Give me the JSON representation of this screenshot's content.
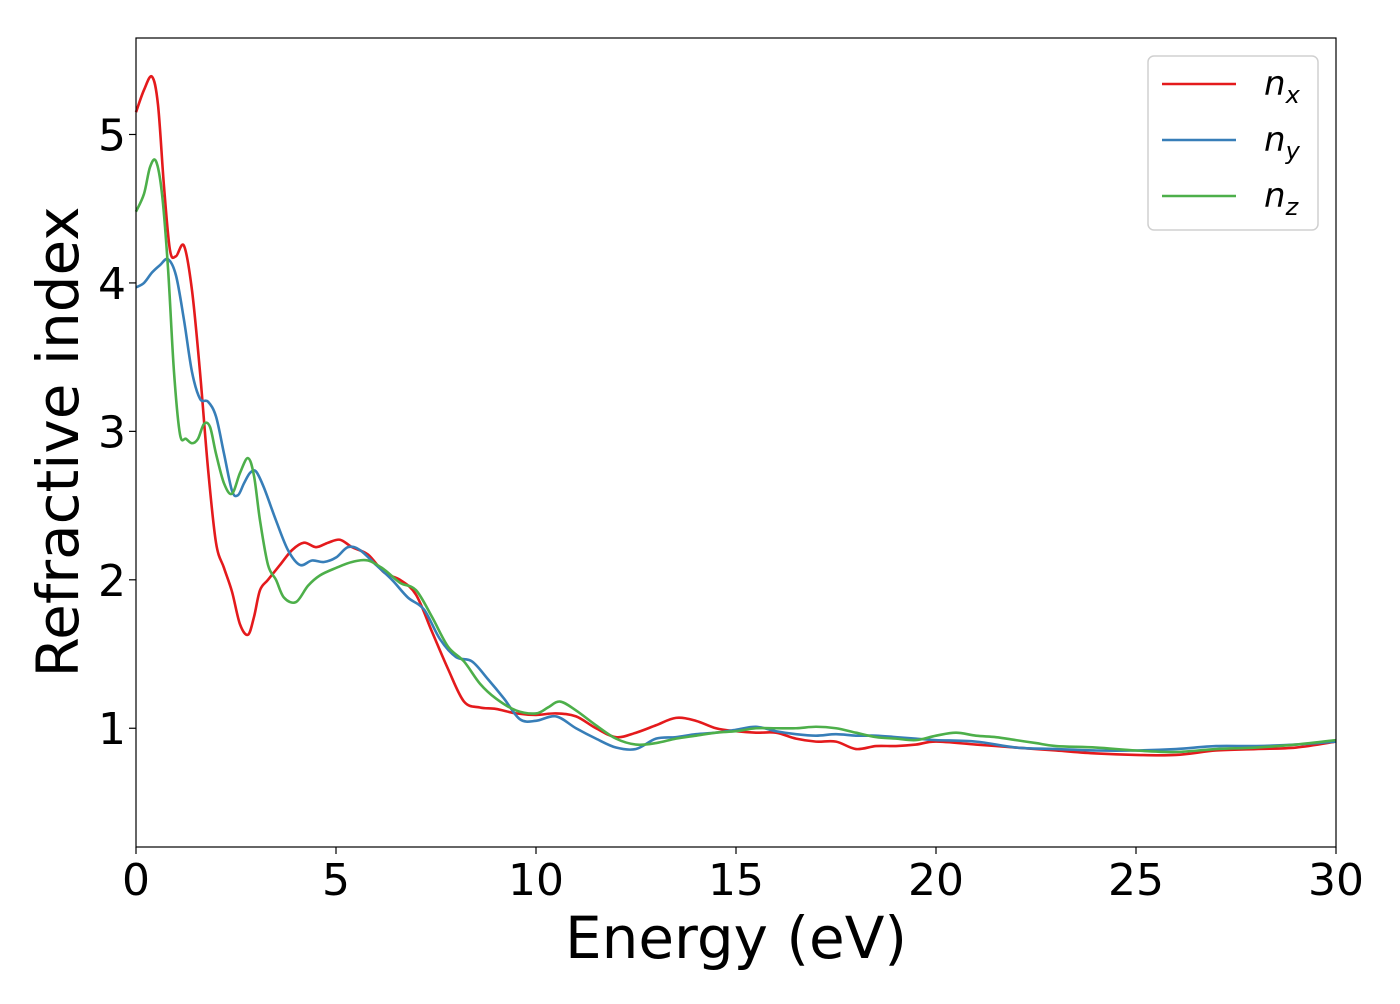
{
  "chart_data": {
    "type": "line",
    "title": "",
    "xlabel": "Energy (eV)",
    "ylabel": "Refractive index",
    "xlim": [
      0,
      30
    ],
    "ylim": [
      0.2,
      5.65
    ],
    "xticks": [
      0,
      5,
      10,
      15,
      20,
      25,
      30
    ],
    "yticks": [
      1,
      2,
      3,
      4,
      5
    ],
    "grid": false,
    "legend": "top-right",
    "series": [
      {
        "name": "n",
        "subscript": "x",
        "color": "#e41a1c",
        "x": [
          0,
          0.2,
          0.4,
          0.55,
          0.7,
          0.85,
          1.0,
          1.2,
          1.4,
          1.6,
          1.8,
          2.0,
          2.2,
          2.4,
          2.6,
          2.8,
          2.95,
          3.1,
          3.3,
          3.6,
          3.9,
          4.2,
          4.5,
          4.8,
          5.1,
          5.4,
          5.8,
          6.2,
          6.6,
          7.0,
          7.4,
          7.8,
          8.2,
          8.6,
          9.0,
          9.5,
          10.0,
          10.5,
          11.0,
          11.5,
          12.0,
          12.5,
          13.0,
          13.5,
          14.0,
          14.5,
          15.0,
          15.5,
          16.0,
          16.5,
          17.0,
          17.5,
          18.0,
          18.5,
          19.0,
          19.5,
          20.0,
          21.0,
          22.0,
          23.0,
          24.0,
          25.0,
          26.0,
          27.0,
          28.0,
          29.0,
          30.0
        ],
        "y": [
          5.15,
          5.3,
          5.39,
          5.2,
          4.65,
          4.22,
          4.18,
          4.25,
          3.95,
          3.4,
          2.75,
          2.25,
          2.08,
          1.92,
          1.7,
          1.63,
          1.75,
          1.93,
          2.0,
          2.1,
          2.2,
          2.25,
          2.22,
          2.25,
          2.27,
          2.22,
          2.17,
          2.05,
          2.0,
          1.9,
          1.65,
          1.4,
          1.18,
          1.14,
          1.13,
          1.1,
          1.09,
          1.1,
          1.08,
          1.0,
          0.94,
          0.97,
          1.02,
          1.07,
          1.05,
          1.0,
          0.98,
          0.97,
          0.97,
          0.93,
          0.91,
          0.91,
          0.86,
          0.88,
          0.88,
          0.89,
          0.91,
          0.89,
          0.87,
          0.85,
          0.83,
          0.82,
          0.82,
          0.85,
          0.86,
          0.87,
          0.91
        ]
      },
      {
        "name": "n",
        "subscript": "y",
        "color": "#377eb8",
        "x": [
          0,
          0.2,
          0.4,
          0.6,
          0.8,
          1.0,
          1.2,
          1.4,
          1.6,
          1.8,
          2.0,
          2.2,
          2.4,
          2.55,
          2.7,
          2.85,
          3.0,
          3.2,
          3.5,
          3.8,
          4.1,
          4.4,
          4.7,
          5.0,
          5.3,
          5.6,
          6.0,
          6.4,
          6.8,
          7.2,
          7.6,
          8.0,
          8.4,
          8.8,
          9.2,
          9.6,
          10.0,
          10.5,
          11.0,
          11.5,
          12.0,
          12.5,
          13.0,
          13.5,
          14.0,
          14.5,
          15.0,
          15.5,
          16.0,
          16.5,
          17.0,
          17.5,
          18.0,
          18.5,
          19.0,
          19.5,
          20.0,
          21.0,
          22.0,
          23.0,
          24.0,
          25.0,
          26.0,
          27.0,
          28.0,
          29.0,
          30.0
        ],
        "y": [
          3.97,
          4.0,
          4.07,
          4.12,
          4.16,
          4.05,
          3.75,
          3.4,
          3.22,
          3.2,
          3.1,
          2.85,
          2.6,
          2.57,
          2.65,
          2.72,
          2.73,
          2.62,
          2.4,
          2.2,
          2.1,
          2.13,
          2.12,
          2.15,
          2.22,
          2.2,
          2.1,
          2.0,
          1.88,
          1.8,
          1.6,
          1.48,
          1.45,
          1.33,
          1.2,
          1.06,
          1.05,
          1.08,
          1.0,
          0.93,
          0.87,
          0.86,
          0.93,
          0.94,
          0.96,
          0.97,
          0.99,
          1.01,
          0.98,
          0.96,
          0.95,
          0.96,
          0.95,
          0.95,
          0.94,
          0.93,
          0.92,
          0.91,
          0.87,
          0.86,
          0.85,
          0.85,
          0.86,
          0.88,
          0.88,
          0.89,
          0.91
        ]
      },
      {
        "name": "n",
        "subscript": "z",
        "color": "#4daf4a",
        "x": [
          0,
          0.2,
          0.35,
          0.5,
          0.65,
          0.8,
          0.95,
          1.1,
          1.25,
          1.4,
          1.55,
          1.7,
          1.85,
          2.0,
          2.2,
          2.4,
          2.6,
          2.8,
          2.95,
          3.1,
          3.3,
          3.5,
          3.7,
          4.0,
          4.3,
          4.6,
          5.0,
          5.4,
          5.8,
          6.2,
          6.6,
          7.0,
          7.4,
          7.8,
          8.2,
          8.6,
          9.0,
          9.5,
          10.0,
          10.3,
          10.6,
          11.0,
          11.5,
          12.0,
          12.5,
          13.0,
          13.5,
          14.0,
          14.5,
          15.0,
          15.5,
          16.0,
          16.5,
          17.0,
          17.5,
          18.0,
          18.5,
          19.0,
          19.5,
          20.0,
          20.5,
          21.0,
          21.5,
          22.0,
          22.5,
          23.0,
          24.0,
          25.0,
          26.0,
          27.0,
          28.0,
          29.0,
          30.0
        ],
        "y": [
          4.48,
          4.6,
          4.78,
          4.82,
          4.6,
          4.1,
          3.4,
          2.98,
          2.95,
          2.92,
          2.95,
          3.05,
          3.03,
          2.85,
          2.65,
          2.58,
          2.72,
          2.82,
          2.7,
          2.4,
          2.1,
          2.0,
          1.88,
          1.85,
          1.96,
          2.03,
          2.08,
          2.12,
          2.13,
          2.07,
          1.98,
          1.93,
          1.75,
          1.55,
          1.45,
          1.3,
          1.2,
          1.12,
          1.1,
          1.14,
          1.18,
          1.12,
          1.02,
          0.93,
          0.89,
          0.9,
          0.93,
          0.95,
          0.97,
          0.98,
          1.0,
          1.0,
          1.0,
          1.01,
          1.0,
          0.97,
          0.94,
          0.93,
          0.92,
          0.95,
          0.97,
          0.95,
          0.94,
          0.92,
          0.9,
          0.88,
          0.87,
          0.85,
          0.84,
          0.86,
          0.87,
          0.89,
          0.92
        ]
      }
    ]
  }
}
